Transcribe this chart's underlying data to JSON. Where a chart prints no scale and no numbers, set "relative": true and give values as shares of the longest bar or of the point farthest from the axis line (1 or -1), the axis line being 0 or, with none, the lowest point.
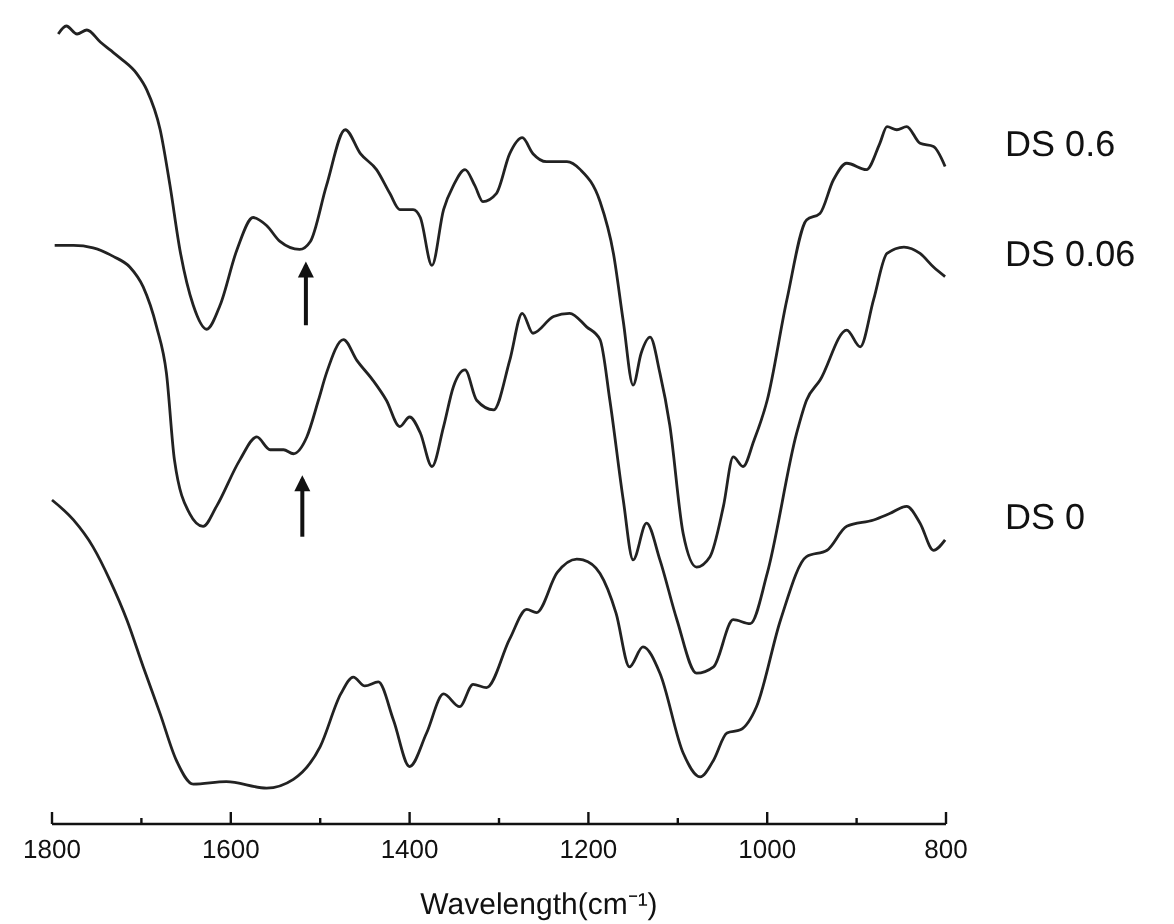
{
  "chart_data": {
    "type": "line",
    "xlabel": "Wavelength(cm⁻¹)",
    "relative": true,
    "xlim": [
      1800,
      800
    ],
    "xticks": [
      1800,
      {
        "value": 1700,
        "label": null
      },
      1600,
      {
        "value": 1500,
        "label": null
      },
      1400,
      {
        "value": 1300,
        "label": null
      },
      1200,
      {
        "value": 1100,
        "label": null
      },
      1000,
      {
        "value": 900,
        "label": null
      },
      800
    ],
    "marker": "none",
    "line_style": "solid",
    "series": [
      {
        "name": "DS 0.6",
        "color": "#222222",
        "x": [
          1793,
          1784,
          1772,
          1761,
          1746,
          1735,
          1724,
          1705,
          1694,
          1679,
          1668,
          1657,
          1642,
          1627,
          1612,
          1593,
          1575,
          1560,
          1545,
          1523,
          1511,
          1493,
          1472,
          1455,
          1437,
          1422,
          1411,
          1396,
          1388,
          1375,
          1362,
          1351,
          1338,
          1327,
          1318,
          1303,
          1288,
          1274,
          1262,
          1247,
          1224,
          1209,
          1187,
          1172,
          1161,
          1150,
          1141,
          1131,
          1120,
          1109,
          1094,
          1079,
          1064,
          1049,
          1038,
          1027,
          1015,
          1000,
          978,
          956,
          941,
          926,
          911,
          889,
          874,
          866,
          855,
          844,
          829,
          814,
          801
        ],
        "values": [
          0.99,
          1.0,
          0.99,
          0.995,
          0.98,
          0.97,
          0.96,
          0.94,
          0.92,
          0.87,
          0.8,
          0.72,
          0.65,
          0.62,
          0.65,
          0.72,
          0.76,
          0.75,
          0.73,
          0.72,
          0.73,
          0.8,
          0.87,
          0.84,
          0.82,
          0.79,
          0.77,
          0.77,
          0.76,
          0.7,
          0.77,
          0.8,
          0.82,
          0.8,
          0.78,
          0.79,
          0.84,
          0.86,
          0.84,
          0.83,
          0.83,
          0.82,
          0.78,
          0.715,
          0.63,
          0.55,
          0.59,
          0.61,
          0.565,
          0.5,
          0.364,
          0.322,
          0.335,
          0.398,
          0.46,
          0.448,
          0.48,
          0.531,
          0.657,
          0.757,
          0.765,
          0.807,
          0.828,
          0.82,
          0.853,
          0.874,
          0.87,
          0.874,
          0.853,
          0.849,
          0.824
        ]
      },
      {
        "name": "DS 0.06",
        "color": "#222222",
        "x": [
          1797,
          1776,
          1754,
          1731,
          1713,
          1698,
          1683,
          1672,
          1663,
          1646,
          1631,
          1616,
          1590,
          1571,
          1556,
          1541,
          1530,
          1515,
          1502,
          1493,
          1474,
          1459,
          1441,
          1426,
          1411,
          1400,
          1388,
          1375,
          1362,
          1351,
          1338,
          1325,
          1306,
          1288,
          1274,
          1262,
          1239,
          1221,
          1202,
          1187,
          1176,
          1161,
          1150,
          1135,
          1120,
          1101,
          1079,
          1060,
          1038,
          1019,
          1000,
          967,
          956,
          941,
          911,
          896,
          881,
          866,
          847,
          829,
          814,
          801
        ],
        "values": [
          0.725,
          0.725,
          0.722,
          0.711,
          0.698,
          0.673,
          0.623,
          0.565,
          0.456,
          0.389,
          0.373,
          0.398,
          0.456,
          0.485,
          0.469,
          0.469,
          0.464,
          0.485,
          0.531,
          0.565,
          0.607,
          0.581,
          0.556,
          0.531,
          0.498,
          0.51,
          0.49,
          0.448,
          0.498,
          0.548,
          0.569,
          0.531,
          0.519,
          0.581,
          0.64,
          0.615,
          0.636,
          0.64,
          0.623,
          0.607,
          0.531,
          0.406,
          0.331,
          0.377,
          0.331,
          0.256,
          0.189,
          0.197,
          0.256,
          0.251,
          0.314,
          0.49,
          0.531,
          0.556,
          0.619,
          0.598,
          0.657,
          0.715,
          0.723,
          0.715,
          0.698,
          0.686
        ]
      },
      {
        "name": "DS 0",
        "color": "#222222",
        "x": [
          1800,
          1776,
          1754,
          1735,
          1716,
          1698,
          1679,
          1661,
          1642,
          1605,
          1560,
          1530,
          1500,
          1477,
          1463,
          1450,
          1435,
          1418,
          1400,
          1381,
          1362,
          1344,
          1329,
          1314,
          1288,
          1269,
          1258,
          1235,
          1213,
          1206,
          1187,
          1169,
          1154,
          1139,
          1120,
          1094,
          1075,
          1060,
          1045,
          1030,
          1012,
          985,
          956,
          933,
          911,
          881,
          863,
          844,
          829,
          814,
          801
        ],
        "values": [
          0.406,
          0.381,
          0.347,
          0.305,
          0.255,
          0.197,
          0.138,
          0.08,
          0.05,
          0.053,
          0.045,
          0.056,
          0.097,
          0.163,
          0.184,
          0.173,
          0.178,
          0.13,
          0.072,
          0.114,
          0.163,
          0.147,
          0.175,
          0.171,
          0.232,
          0.269,
          0.265,
          0.315,
          0.332,
          0.331,
          0.314,
          0.264,
          0.197,
          0.222,
          0.189,
          0.089,
          0.059,
          0.08,
          0.114,
          0.118,
          0.147,
          0.256,
          0.335,
          0.343,
          0.373,
          0.381,
          0.389,
          0.398,
          0.377,
          0.343,
          0.356
        ]
      }
    ]
  }
}
